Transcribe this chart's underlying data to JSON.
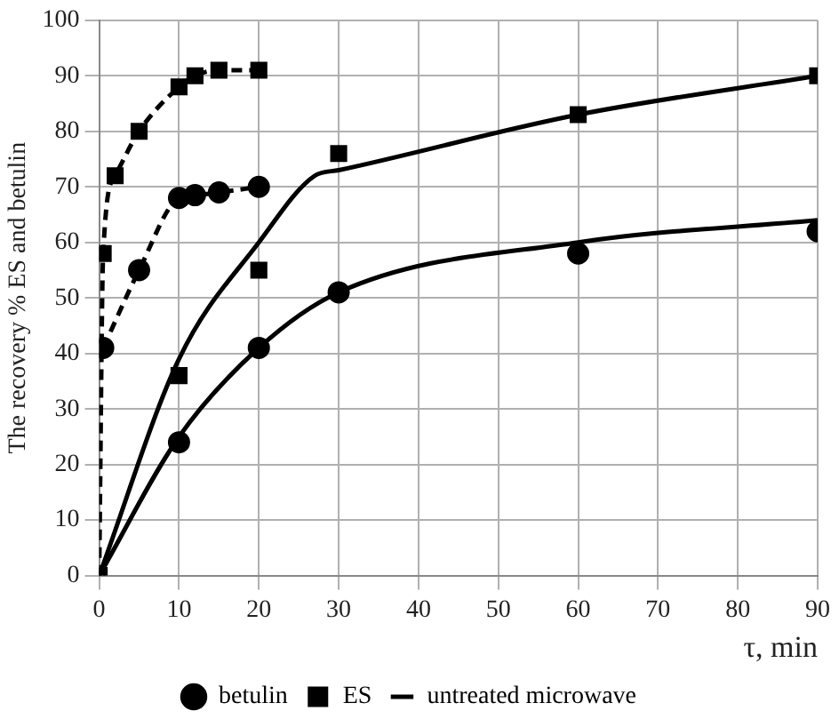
{
  "chart_data": {
    "type": "scatter",
    "ylabel": "The recovery % ES and betulin",
    "xlabel": "τ, min",
    "xlim": [
      0,
      90
    ],
    "xticks": [
      0,
      10,
      20,
      30,
      40,
      50,
      60,
      70,
      80,
      90
    ],
    "ylim": [
      0,
      100
    ],
    "yticks": [
      0,
      10,
      20,
      30,
      40,
      50,
      60,
      70,
      80,
      90,
      100
    ],
    "grid": true,
    "legend": "bottom",
    "series": [
      {
        "name": "betulin",
        "type": "line",
        "line_style": "dashed",
        "marker": "circle",
        "color": "#000000",
        "x": [
          0.5,
          5,
          10,
          12,
          15,
          20
        ],
        "values": [
          41,
          55,
          68,
          68.5,
          69,
          70
        ]
      },
      {
        "name": "ES",
        "type": "line",
        "line_style": "dashed",
        "marker": "square",
        "color": "#000000",
        "x": [
          0,
          0.5,
          2,
          5,
          10,
          12,
          15,
          20
        ],
        "values": [
          0,
          58,
          72,
          80,
          88,
          90,
          91,
          91
        ]
      },
      {
        "marker": "square",
        "color": "#000000",
        "x": [
          10,
          20,
          30,
          60,
          90
        ],
        "values": [
          36,
          55,
          76,
          83,
          90
        ]
      },
      {
        "marker": "circle",
        "color": "#000000",
        "x": [
          10,
          20,
          30,
          60,
          90
        ],
        "values": [
          24,
          41,
          51,
          58,
          62
        ]
      },
      {
        "name": "untreated microwave",
        "type": "line",
        "line_style": "solid",
        "marker": "none",
        "color": "#000000",
        "x": [
          0,
          10,
          20,
          27,
          30,
          60,
          90
        ],
        "values": [
          0,
          39,
          60,
          72,
          73,
          83,
          90
        ]
      },
      {
        "type": "line",
        "line_style": "solid",
        "marker": "none",
        "color": "#000000",
        "x": [
          0,
          10,
          20,
          30,
          60,
          90
        ],
        "values": [
          0,
          25,
          41,
          51,
          60,
          64
        ]
      }
    ]
  }
}
